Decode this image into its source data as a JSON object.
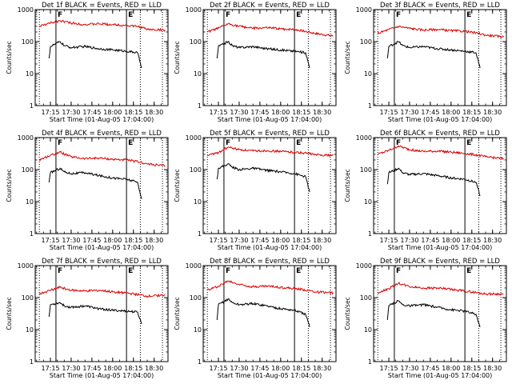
{
  "colors": {
    "events": "#000000",
    "lld": "#dd0000",
    "axes": "#000000"
  },
  "chart_data": [
    {
      "type": "line",
      "title": "Det 1f BLACK = Events, RED = LLD",
      "xlabel": "Start Time (01-Aug-05 17:04:00)",
      "ylabel": "Counts/sec",
      "y_scale": "log",
      "ylim": [
        1,
        1000
      ],
      "y_ticks": [
        "1",
        "10",
        "100",
        "1000"
      ],
      "x_ticks": [
        "17:15",
        "17:30",
        "17:45",
        "18:00",
        "18:15",
        "18:30"
      ],
      "xlim": [
        "17:04",
        "18:40"
      ],
      "markers": [
        {
          "label": "F",
          "time": "17:19",
          "style": "solid"
        },
        {
          "label": "E",
          "time": "18:10",
          "style": "solid"
        },
        {
          "label": "",
          "time": "17:07",
          "style": "dotted"
        },
        {
          "label": "",
          "time": "18:20",
          "style": "dotted"
        },
        {
          "label": "",
          "time": "18:36",
          "style": "dotted"
        }
      ],
      "series": [
        {
          "name": "LLD",
          "color": "#dd0000",
          "x": [
            "17:07",
            "17:15",
            "17:22",
            "17:30",
            "17:40",
            "17:50",
            "18:00",
            "18:10",
            "18:20",
            "18:25",
            "18:38"
          ],
          "y": [
            300,
            380,
            450,
            380,
            340,
            360,
            340,
            320,
            290,
            240,
            230
          ]
        },
        {
          "name": "Events",
          "color": "#000000",
          "x": [
            "17:14",
            "17:15",
            "17:22",
            "17:25",
            "17:30",
            "17:40",
            "17:50",
            "18:00",
            "18:10",
            "18:18",
            "18:21"
          ],
          "y": [
            30,
            70,
            100,
            75,
            65,
            70,
            60,
            55,
            50,
            45,
            15
          ]
        }
      ]
    },
    {
      "type": "line",
      "title": "Det 2f BLACK = Events, RED = LLD",
      "xlabel": "Start Time (01-Aug-05 17:04:00)",
      "ylabel": "Counts/sec",
      "y_scale": "log",
      "ylim": [
        1,
        1000
      ],
      "y_ticks": [
        "1",
        "10",
        "100",
        "1000"
      ],
      "x_ticks": [
        "17:15",
        "17:30",
        "17:45",
        "18:00",
        "18:15",
        "18:30"
      ],
      "xlim": [
        "17:04",
        "18:40"
      ],
      "markers": [
        {
          "label": "F",
          "time": "17:19",
          "style": "solid"
        },
        {
          "label": "E",
          "time": "18:10",
          "style": "solid"
        },
        {
          "label": "",
          "time": "17:07",
          "style": "dotted"
        },
        {
          "label": "",
          "time": "18:20",
          "style": "dotted"
        },
        {
          "label": "",
          "time": "18:36",
          "style": "dotted"
        }
      ],
      "series": [
        {
          "name": "LLD",
          "color": "#dd0000",
          "x": [
            "17:07",
            "17:15",
            "17:22",
            "17:30",
            "17:40",
            "17:50",
            "18:00",
            "18:10",
            "18:20",
            "18:25",
            "18:38"
          ],
          "y": [
            200,
            260,
            360,
            300,
            260,
            270,
            250,
            240,
            200,
            180,
            150
          ]
        },
        {
          "name": "Events",
          "color": "#000000",
          "x": [
            "17:14",
            "17:15",
            "17:22",
            "17:25",
            "17:30",
            "17:40",
            "17:50",
            "18:00",
            "18:10",
            "18:18",
            "18:21"
          ],
          "y": [
            30,
            70,
            100,
            75,
            65,
            70,
            60,
            55,
            50,
            45,
            15
          ]
        }
      ]
    },
    {
      "type": "line",
      "title": "Det 3f BLACK = Events, RED = LLD",
      "xlabel": "Start Time (01-Aug-05 17:04:00)",
      "ylabel": "Counts/sec",
      "y_scale": "log",
      "ylim": [
        1,
        1000
      ],
      "y_ticks": [
        "1",
        "10",
        "100",
        "1000"
      ],
      "x_ticks": [
        "17:15",
        "17:30",
        "17:45",
        "18:00",
        "18:15",
        "18:30"
      ],
      "xlim": [
        "17:04",
        "18:40"
      ],
      "markers": [
        {
          "label": "F",
          "time": "17:19",
          "style": "solid"
        },
        {
          "label": "E",
          "time": "18:10",
          "style": "solid"
        },
        {
          "label": "",
          "time": "17:07",
          "style": "dotted"
        },
        {
          "label": "",
          "time": "18:20",
          "style": "dotted"
        },
        {
          "label": "",
          "time": "18:36",
          "style": "dotted"
        }
      ],
      "series": [
        {
          "name": "LLD",
          "color": "#dd0000",
          "x": [
            "17:07",
            "17:15",
            "17:22",
            "17:30",
            "17:40",
            "17:50",
            "18:00",
            "18:10",
            "18:20",
            "18:25",
            "18:38"
          ],
          "y": [
            180,
            240,
            300,
            260,
            230,
            240,
            220,
            210,
            180,
            160,
            140
          ]
        },
        {
          "name": "Events",
          "color": "#000000",
          "x": [
            "17:14",
            "17:15",
            "17:22",
            "17:25",
            "17:30",
            "17:40",
            "17:50",
            "18:00",
            "18:10",
            "18:18",
            "18:21"
          ],
          "y": [
            30,
            70,
            100,
            75,
            65,
            70,
            60,
            55,
            50,
            45,
            15
          ]
        }
      ]
    },
    {
      "type": "line",
      "title": "Det 4f BLACK = Events, RED = LLD",
      "xlabel": "Start Time (01-Aug-05 17:04:00)",
      "ylabel": "Counts/sec",
      "y_scale": "log",
      "ylim": [
        1,
        1000
      ],
      "y_ticks": [
        "1",
        "10",
        "100",
        "1000"
      ],
      "x_ticks": [
        "17:15",
        "17:30",
        "17:45",
        "18:00",
        "18:15",
        "18:30"
      ],
      "xlim": [
        "17:04",
        "18:40"
      ],
      "markers": [
        {
          "label": "F",
          "time": "17:19",
          "style": "solid"
        },
        {
          "label": "E",
          "time": "18:10",
          "style": "solid"
        },
        {
          "label": "",
          "time": "17:07",
          "style": "dotted"
        },
        {
          "label": "",
          "time": "18:20",
          "style": "dotted"
        },
        {
          "label": "",
          "time": "18:36",
          "style": "dotted"
        }
      ],
      "series": [
        {
          "name": "LLD",
          "color": "#dd0000",
          "x": [
            "17:07",
            "17:15",
            "17:22",
            "17:30",
            "17:40",
            "17:50",
            "18:00",
            "18:10",
            "18:20",
            "18:25",
            "18:38"
          ],
          "y": [
            200,
            280,
            350,
            250,
            220,
            230,
            210,
            200,
            170,
            150,
            130
          ]
        },
        {
          "name": "Events",
          "color": "#000000",
          "x": [
            "17:14",
            "17:15",
            "17:22",
            "17:25",
            "17:30",
            "17:40",
            "17:50",
            "18:00",
            "18:10",
            "18:18",
            "18:21"
          ],
          "y": [
            40,
            80,
            110,
            85,
            75,
            80,
            65,
            55,
            50,
            40,
            12
          ]
        }
      ]
    },
    {
      "type": "line",
      "title": "Det 5f BLACK = Events, RED = LLD",
      "xlabel": "Start Time (01-Aug-05 17:04:00)",
      "ylabel": "Counts/sec",
      "y_scale": "log",
      "ylim": [
        1,
        1000
      ],
      "y_ticks": [
        "1",
        "10",
        "100",
        "1000"
      ],
      "x_ticks": [
        "17:15",
        "17:30",
        "17:45",
        "18:00",
        "18:15",
        "18:30"
      ],
      "xlim": [
        "17:04",
        "18:40"
      ],
      "markers": [
        {
          "label": "F",
          "time": "17:19",
          "style": "solid"
        },
        {
          "label": "E",
          "time": "18:10",
          "style": "solid"
        },
        {
          "label": "",
          "time": "17:07",
          "style": "dotted"
        },
        {
          "label": "",
          "time": "18:20",
          "style": "dotted"
        },
        {
          "label": "",
          "time": "18:36",
          "style": "dotted"
        }
      ],
      "series": [
        {
          "name": "LLD",
          "color": "#dd0000",
          "x": [
            "17:07",
            "17:15",
            "17:22",
            "17:30",
            "17:40",
            "17:50",
            "18:00",
            "18:10",
            "18:20",
            "18:25",
            "18:38"
          ],
          "y": [
            280,
            340,
            500,
            420,
            380,
            390,
            370,
            350,
            320,
            290,
            280
          ]
        },
        {
          "name": "Events",
          "color": "#000000",
          "x": [
            "17:14",
            "17:15",
            "17:22",
            "17:25",
            "17:30",
            "17:40",
            "17:50",
            "18:00",
            "18:10",
            "18:18",
            "18:21"
          ],
          "y": [
            50,
            110,
            150,
            120,
            100,
            110,
            95,
            85,
            75,
            60,
            20
          ]
        }
      ]
    },
    {
      "type": "line",
      "title": "Det 6f BLACK = Events, RED = LLD",
      "xlabel": "Start Time (01-Aug-05 17:04:00)",
      "ylabel": "Counts/sec",
      "y_scale": "log",
      "ylim": [
        1,
        1000
      ],
      "y_ticks": [
        "1",
        "10",
        "100",
        "1000"
      ],
      "x_ticks": [
        "17:15",
        "17:30",
        "17:45",
        "18:00",
        "18:15",
        "18:30"
      ],
      "xlim": [
        "17:04",
        "18:40"
      ],
      "markers": [
        {
          "label": "F",
          "time": "17:19",
          "style": "solid"
        },
        {
          "label": "E",
          "time": "18:10",
          "style": "solid"
        },
        {
          "label": "",
          "time": "17:07",
          "style": "dotted"
        },
        {
          "label": "",
          "time": "18:20",
          "style": "dotted"
        },
        {
          "label": "",
          "time": "18:36",
          "style": "dotted"
        }
      ],
      "series": [
        {
          "name": "LLD",
          "color": "#dd0000",
          "x": [
            "17:07",
            "17:15",
            "17:22",
            "17:30",
            "17:40",
            "17:50",
            "18:00",
            "18:10",
            "18:20",
            "18:25",
            "18:38"
          ],
          "y": [
            300,
            400,
            550,
            420,
            370,
            380,
            350,
            320,
            280,
            250,
            220
          ]
        },
        {
          "name": "Events",
          "color": "#000000",
          "x": [
            "17:14",
            "17:15",
            "17:22",
            "17:25",
            "17:30",
            "17:40",
            "17:50",
            "18:00",
            "18:10",
            "18:18",
            "18:21"
          ],
          "y": [
            35,
            80,
            110,
            80,
            70,
            75,
            65,
            55,
            50,
            40,
            15
          ]
        }
      ]
    },
    {
      "type": "line",
      "title": "Det 7f BLACK = Events, RED = LLD",
      "xlabel": "Start Time (01-Aug-05 17:04:00)",
      "ylabel": "Counts/sec",
      "y_scale": "log",
      "ylim": [
        1,
        1000
      ],
      "y_ticks": [
        "1",
        "10",
        "100",
        "1000"
      ],
      "x_ticks": [
        "17:15",
        "17:30",
        "17:45",
        "18:00",
        "18:15",
        "18:30"
      ],
      "xlim": [
        "17:04",
        "18:40"
      ],
      "markers": [
        {
          "label": "F",
          "time": "17:19",
          "style": "solid"
        },
        {
          "label": "E",
          "time": "18:10",
          "style": "solid"
        },
        {
          "label": "",
          "time": "17:07",
          "style": "dotted"
        },
        {
          "label": "",
          "time": "18:20",
          "style": "dotted"
        },
        {
          "label": "",
          "time": "18:36",
          "style": "dotted"
        }
      ],
      "series": [
        {
          "name": "LLD",
          "color": "#dd0000",
          "x": [
            "17:07",
            "17:15",
            "17:22",
            "17:30",
            "17:40",
            "17:50",
            "18:00",
            "18:10",
            "18:20",
            "18:25",
            "18:38"
          ],
          "y": [
            130,
            170,
            210,
            170,
            160,
            170,
            150,
            140,
            120,
            110,
            120
          ]
        },
        {
          "name": "Events",
          "color": "#000000",
          "x": [
            "17:14",
            "17:15",
            "17:22",
            "17:25",
            "17:30",
            "17:40",
            "17:50",
            "18:00",
            "18:10",
            "18:18",
            "18:21"
          ],
          "y": [
            25,
            60,
            70,
            55,
            50,
            55,
            45,
            40,
            38,
            35,
            15
          ]
        }
      ]
    },
    {
      "type": "line",
      "title": "Det 8f BLACK = Events, RED = LLD",
      "xlabel": "Start Time (01-Aug-05 17:04:00)",
      "ylabel": "Counts/sec",
      "y_scale": "log",
      "ylim": [
        1,
        1000
      ],
      "y_ticks": [
        "1",
        "10",
        "100",
        "1000"
      ],
      "x_ticks": [
        "17:15",
        "17:30",
        "17:45",
        "18:00",
        "18:15",
        "18:30"
      ],
      "xlim": [
        "17:04",
        "18:40"
      ],
      "markers": [
        {
          "label": "F",
          "time": "17:19",
          "style": "solid"
        },
        {
          "label": "E",
          "time": "18:10",
          "style": "solid"
        },
        {
          "label": "",
          "time": "17:07",
          "style": "dotted"
        },
        {
          "label": "",
          "time": "18:20",
          "style": "dotted"
        },
        {
          "label": "",
          "time": "18:36",
          "style": "dotted"
        }
      ],
      "series": [
        {
          "name": "LLD",
          "color": "#dd0000",
          "x": [
            "17:07",
            "17:15",
            "17:22",
            "17:30",
            "17:40",
            "17:50",
            "18:00",
            "18:10",
            "18:20",
            "18:25",
            "18:38"
          ],
          "y": [
            170,
            230,
            330,
            260,
            220,
            230,
            210,
            190,
            170,
            150,
            140
          ]
        },
        {
          "name": "Events",
          "color": "#000000",
          "x": [
            "17:14",
            "17:15",
            "17:22",
            "17:25",
            "17:30",
            "17:40",
            "17:50",
            "18:00",
            "18:10",
            "18:18",
            "18:21"
          ],
          "y": [
            20,
            60,
            90,
            70,
            60,
            65,
            55,
            45,
            40,
            30,
            12
          ]
        }
      ]
    },
    {
      "type": "line",
      "title": "Det 9f BLACK = Events, RED = LLD",
      "xlabel": "Start Time (01-Aug-05 17:04:00)",
      "ylabel": "Counts/sec",
      "y_scale": "log",
      "ylim": [
        1,
        1000
      ],
      "y_ticks": [
        "1",
        "10",
        "100",
        "1000"
      ],
      "x_ticks": [
        "17:15",
        "17:30",
        "17:45",
        "18:00",
        "18:15",
        "18:30"
      ],
      "xlim": [
        "17:04",
        "18:40"
      ],
      "markers": [
        {
          "label": "F",
          "time": "17:19",
          "style": "solid"
        },
        {
          "label": "E",
          "time": "18:10",
          "style": "solid"
        },
        {
          "label": "",
          "time": "17:07",
          "style": "dotted"
        },
        {
          "label": "",
          "time": "18:20",
          "style": "dotted"
        },
        {
          "label": "",
          "time": "18:36",
          "style": "dotted"
        }
      ],
      "series": [
        {
          "name": "LLD",
          "color": "#dd0000",
          "x": [
            "17:07",
            "17:15",
            "17:22",
            "17:30",
            "17:40",
            "17:50",
            "18:00",
            "18:10",
            "18:20",
            "18:25",
            "18:38"
          ],
          "y": [
            140,
            190,
            280,
            220,
            200,
            200,
            180,
            160,
            140,
            130,
            130
          ]
        },
        {
          "name": "Events",
          "color": "#000000",
          "x": [
            "17:14",
            "17:15",
            "17:22",
            "17:25",
            "17:30",
            "17:40",
            "17:50",
            "18:00",
            "18:10",
            "18:18",
            "18:21"
          ],
          "y": [
            20,
            55,
            80,
            60,
            55,
            60,
            50,
            42,
            38,
            30,
            12
          ]
        }
      ]
    }
  ]
}
